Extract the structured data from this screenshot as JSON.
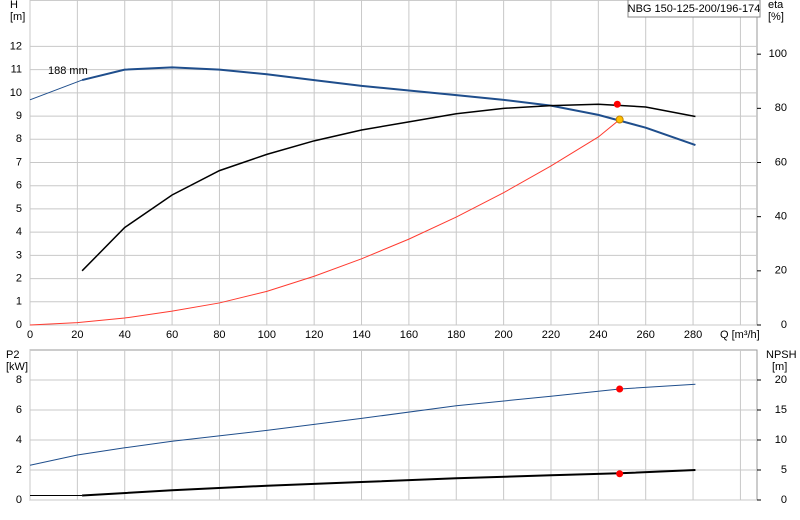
{
  "chart_data": [
    {
      "type": "line",
      "title": "NBG 150-125-200/196-174",
      "annotation": "188 mm",
      "ylabel": "H",
      "yunit": "[m]",
      "y2label": "eta",
      "y2unit": "[%]",
      "xlabel": "Q [m³/h]",
      "xlim": [
        0,
        307
      ],
      "xticks": [
        0,
        20,
        40,
        60,
        80,
        100,
        120,
        140,
        160,
        180,
        200,
        220,
        240,
        260,
        280,
        300
      ],
      "xtick_labels": true,
      "ylim": [
        0,
        14
      ],
      "yticks": [
        0,
        1,
        2,
        3,
        4,
        5,
        6,
        7,
        8,
        9,
        10,
        11,
        12
      ],
      "y2lim": [
        0,
        120
      ],
      "y2ticks": [
        0,
        20,
        40,
        60,
        80,
        100
      ],
      "grid": true,
      "series": [
        {
          "color": "#1f4e8c",
          "width": 1,
          "x": [
            0,
            22
          ],
          "values": [
            9.7,
            10.55
          ]
        },
        {
          "color": "#1f4e8c",
          "width": 2,
          "x": [
            22,
            40,
            60,
            80,
            100,
            120,
            140,
            160,
            180,
            200,
            220,
            240,
            260,
            281
          ],
          "values": [
            10.55,
            11.0,
            11.1,
            11.0,
            10.8,
            10.55,
            10.3,
            10.1,
            9.9,
            9.7,
            9.45,
            9.05,
            8.5,
            7.75
          ]
        },
        {
          "color": "#ff3b30",
          "width": 1,
          "x": [
            0,
            20,
            40,
            60,
            80,
            100,
            120,
            140,
            160,
            180,
            200,
            220,
            240,
            249
          ],
          "values": [
            0,
            0.1,
            0.3,
            0.6,
            0.95,
            1.45,
            2.1,
            2.85,
            3.7,
            4.65,
            5.7,
            6.85,
            8.1,
            8.85
          ]
        },
        {
          "color": "#000000",
          "width": 1.5,
          "axis": "y2",
          "x": [
            22,
            40,
            60,
            80,
            100,
            120,
            140,
            160,
            180,
            200,
            220,
            240,
            260,
            281
          ],
          "values": [
            20,
            36,
            48,
            57,
            63,
            68,
            72,
            75,
            78,
            80,
            81,
            81.5,
            80.5,
            77
          ]
        },
        {
          "style": "point",
          "color": "#ff0000",
          "axis": "y2",
          "x": [
            248
          ],
          "values": [
            81.5
          ]
        },
        {
          "style": "point",
          "color": "#ffc000",
          "x": [
            249
          ],
          "values": [
            8.85
          ]
        }
      ]
    },
    {
      "type": "line",
      "ylabel": "P2",
      "yunit": "[kW]",
      "y2label": "NPSH",
      "y2unit": "[m]",
      "xlim": [
        0,
        307
      ],
      "xticks": [
        0,
        20,
        40,
        60,
        80,
        100,
        120,
        140,
        160,
        180,
        200,
        220,
        240,
        260,
        280,
        300
      ],
      "xtick_labels": false,
      "ylim": [
        0,
        10
      ],
      "yticks": [
        0,
        2,
        4,
        6,
        8
      ],
      "y2lim": [
        0,
        25
      ],
      "y2ticks": [
        0,
        5,
        10,
        15,
        20
      ],
      "grid": true,
      "series": [
        {
          "color": "#1f4e8c",
          "width": 1,
          "axis": "y2",
          "x": [
            0,
            20,
            40,
            60,
            100,
            140,
            180,
            220,
            249,
            281
          ],
          "values": [
            5.8,
            7.5,
            8.7,
            9.8,
            11.6,
            13.6,
            15.7,
            17.3,
            18.5,
            19.3
          ]
        },
        {
          "color": "#000000",
          "width": 1,
          "x": [
            0,
            22
          ],
          "values": [
            0.3,
            0.3
          ]
        },
        {
          "color": "#000000",
          "width": 2,
          "x": [
            22,
            60,
            100,
            140,
            180,
            220,
            249,
            281
          ],
          "values": [
            0.3,
            0.65,
            0.95,
            1.2,
            1.45,
            1.65,
            1.78,
            2.0
          ]
        },
        {
          "style": "point",
          "color": "#ff0000",
          "axis": "y2",
          "x": [
            249
          ],
          "values": [
            18.5
          ]
        },
        {
          "style": "point",
          "color": "#ff0000",
          "x": [
            249
          ],
          "values": [
            1.75
          ]
        }
      ]
    }
  ]
}
